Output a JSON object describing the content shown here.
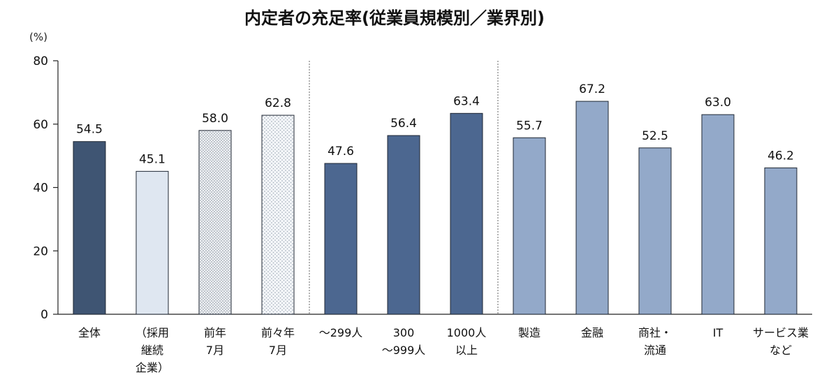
{
  "chart_data": {
    "type": "bar",
    "title": "内定者の充足率(従業員規模別／業界別)",
    "ylabel": "(%)",
    "ylim": [
      0,
      80
    ],
    "yticks": [
      0,
      20,
      40,
      60,
      80
    ],
    "grid": false,
    "value_label_format": "one-decimal",
    "categories": [
      [
        "全体"
      ],
      [
        "（採用",
        "継続",
        "企業）"
      ],
      [
        "前年",
        "7月"
      ],
      [
        "前々年",
        "7月"
      ],
      [
        "～299人"
      ],
      [
        "300",
        "～999人"
      ],
      [
        "1000人",
        "以上"
      ],
      [
        "製造"
      ],
      [
        "金融"
      ],
      [
        "商社・",
        "流通"
      ],
      [
        "IT"
      ],
      [
        "サービス業",
        "など"
      ]
    ],
    "values": [
      54.5,
      45.1,
      58.0,
      62.8,
      47.6,
      56.4,
      63.4,
      55.7,
      67.2,
      52.5,
      63.0,
      46.2
    ],
    "bar_colors": [
      "#3f5573",
      "#dfe7f1",
      "dots-dense",
      "dots-sparse",
      "#4c6790",
      "#4c6790",
      "#4c6790",
      "#93a9c9",
      "#93a9c9",
      "#93a9c9",
      "#93a9c9",
      "#93a9c9"
    ],
    "group_separators_after": [
      3,
      6
    ]
  }
}
